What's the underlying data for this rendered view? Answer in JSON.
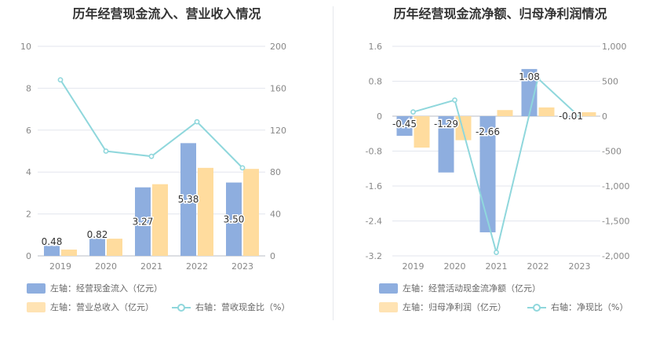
{
  "colors": {
    "bar_primary": "#8eaedf",
    "bar_secondary": "#ffdc9e",
    "line": "#8fd7dc",
    "grid": "#e3e6ee",
    "axis_text": "#888888"
  },
  "chart_data": [
    {
      "type": "bar+line",
      "title": "历年经营现金流入、营业收入情况",
      "categories": [
        "2019",
        "2020",
        "2021",
        "2022",
        "2023"
      ],
      "left_axis": {
        "min": 0,
        "max": 10,
        "ticks": [
          "0",
          "2",
          "4",
          "6",
          "8",
          "10"
        ]
      },
      "right_axis": {
        "min": 0,
        "max": 200,
        "ticks": [
          "0",
          "40",
          "80",
          "120",
          "160",
          "200"
        ]
      },
      "series": [
        {
          "name": "左轴：经营现金流入（亿元）",
          "kind": "bar",
          "axis": "left",
          "values": [
            0.48,
            0.82,
            3.27,
            5.38,
            3.5
          ],
          "labels": [
            "0.48",
            "0.82",
            "3.27",
            "5.38",
            "3.50"
          ]
        },
        {
          "name": "左轴：营业总收入（亿元）",
          "kind": "bar",
          "axis": "left",
          "values": [
            0.3,
            0.82,
            3.42,
            4.2,
            4.15
          ]
        },
        {
          "name": "右轴：营收现金比（%）",
          "kind": "line",
          "axis": "right",
          "values": [
            168,
            100,
            95,
            128,
            84
          ]
        }
      ]
    },
    {
      "type": "bar+line",
      "title": "历年经营现金流净额、归母净利润情况",
      "categories": [
        "2019",
        "2020",
        "2021",
        "2022",
        "2023"
      ],
      "left_axis": {
        "min": -3.2,
        "max": 1.6,
        "ticks": [
          "-3.2",
          "-2.4",
          "-1.6",
          "-0.8",
          "0",
          "0.8",
          "1.6"
        ]
      },
      "right_axis": {
        "min": -2000,
        "max": 1000,
        "ticks": [
          "-2,000",
          "-1,500",
          "-1,000",
          "-500",
          "0",
          "500",
          "1,000"
        ]
      },
      "series": [
        {
          "name": "左轴：经营活动现金流净额（亿元）",
          "kind": "bar",
          "axis": "left",
          "values": [
            -0.45,
            -1.29,
            -2.66,
            1.08,
            -0.01
          ],
          "labels": [
            "-0.45",
            "-1.29",
            "-2.66",
            "1.08",
            "-0.01"
          ]
        },
        {
          "name": "左轴：归母净利润（亿元）",
          "kind": "bar",
          "axis": "left",
          "values": [
            -0.72,
            -0.55,
            0.14,
            0.2,
            0.09
          ]
        },
        {
          "name": "右轴：净现比（%）",
          "kind": "line",
          "axis": "right",
          "values": [
            60,
            230,
            -1950,
            540,
            -10
          ]
        }
      ]
    }
  ]
}
